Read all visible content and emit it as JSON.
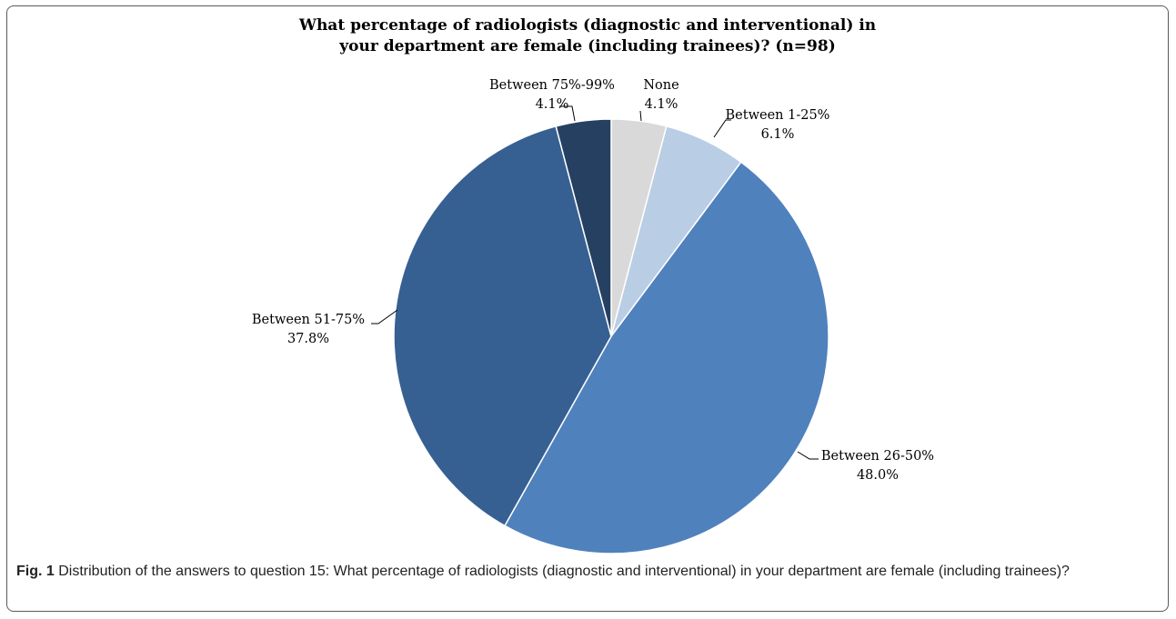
{
  "chart_data": {
    "type": "pie",
    "title_lines": [
      "What percentage of radiologists (diagnostic and interventional) in",
      "your department are female (including trainees)? (n=98)"
    ],
    "slices": [
      {
        "label": "None",
        "value": 4.1,
        "value_label": "4.1%",
        "color": "#d9d9d9"
      },
      {
        "label": "Between 1-25%",
        "value": 6.1,
        "value_label": "6.1%",
        "color": "#b9cde5"
      },
      {
        "label": "Between 26-50%",
        "value": 48.0,
        "value_label": "48.0%",
        "color": "#4f81bd"
      },
      {
        "label": "Between 51-75%",
        "value": 37.8,
        "value_label": "37.8%",
        "color": "#376092"
      },
      {
        "label": "Between 75%-99%",
        "value": 4.1,
        "value_label": "4.1%",
        "color": "#254061"
      }
    ],
    "start": "12 o'clock",
    "direction": "clockwise"
  },
  "caption": {
    "fig_label": "Fig. 1",
    "text": " Distribution of the answers to question 15: What percentage of radiologists (diagnostic and interventional) in your department are female (including trainees)?"
  }
}
